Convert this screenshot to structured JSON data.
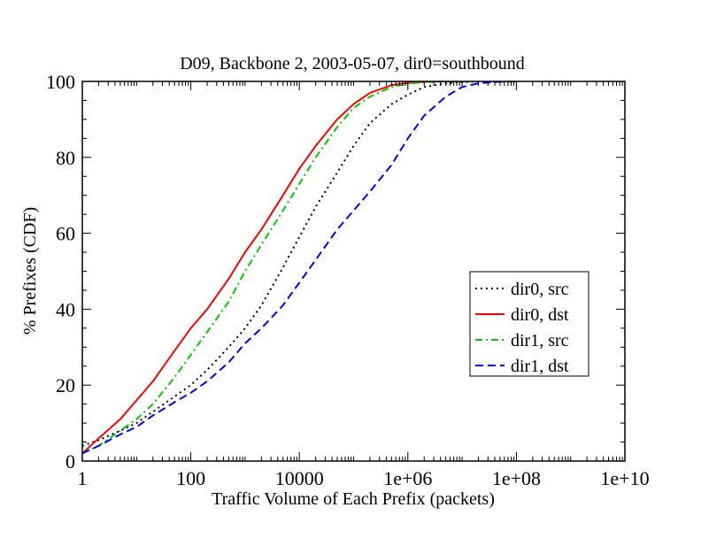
{
  "chart_data": {
    "type": "line",
    "title": "D09, Backbone 2, 2003-05-07, dir0=southbound",
    "xlabel": "Traffic Volume of Each Prefix (packets)",
    "ylabel": "% Prefixes (CDF)",
    "x_scale": "log",
    "xlim": [
      1,
      10000000000
    ],
    "ylim": [
      0,
      100
    ],
    "x_ticks": [
      1,
      100,
      10000,
      1000000,
      100000000,
      10000000000
    ],
    "x_tick_labels": [
      "1",
      "100",
      "10000",
      "1e+06",
      "1e+08",
      "1e+10"
    ],
    "y_ticks": [
      0,
      20,
      40,
      60,
      80,
      100
    ],
    "y_tick_labels": [
      "0",
      "20",
      "40",
      "60",
      "80",
      "100"
    ],
    "grid": false,
    "legend_position": "right",
    "series": [
      {
        "name": "dir0, src",
        "color": "#000000",
        "dash": "dotted",
        "x": [
          1,
          2,
          5,
          10,
          20,
          50,
          100,
          200,
          500,
          1000,
          2000,
          5000,
          10000,
          20000,
          50000,
          100000,
          200000,
          500000,
          1000000,
          2000000,
          5000000,
          10000000,
          20000000,
          50000000
        ],
        "y": [
          4,
          5.5,
          8,
          10,
          13,
          17,
          20,
          24,
          30,
          35,
          41,
          51,
          59,
          67,
          76,
          83,
          89,
          94,
          96.5,
          98.5,
          99.5,
          99.8,
          100,
          100
        ]
      },
      {
        "name": "dir0, dst",
        "color": "#ff0000",
        "dash": "solid",
        "x": [
          1,
          2,
          5,
          10,
          20,
          50,
          100,
          200,
          500,
          1000,
          2000,
          5000,
          10000,
          20000,
          50000,
          100000,
          200000,
          500000,
          1000000,
          2000000,
          5000000,
          10000000
        ],
        "y": [
          2,
          6,
          11,
          16,
          21,
          29,
          35,
          40,
          48,
          55,
          61,
          70,
          77,
          83,
          90,
          94,
          97,
          99,
          99.6,
          99.9,
          100,
          100
        ]
      },
      {
        "name": "dir1, src",
        "color": "#00cc00",
        "dash": "dashdot",
        "x": [
          1,
          2,
          5,
          10,
          20,
          50,
          100,
          200,
          500,
          1000,
          2000,
          5000,
          10000,
          20000,
          50000,
          100000,
          200000,
          500000,
          1000000,
          2000000,
          5000000,
          10000000,
          20000000
        ],
        "y": [
          2,
          4,
          8,
          11,
          15,
          22,
          28,
          34,
          42,
          50,
          57,
          66,
          73,
          80,
          88,
          93,
          96,
          98.5,
          99.4,
          99.8,
          100,
          100,
          100
        ]
      },
      {
        "name": "dir1, dst",
        "color": "#0000ff",
        "dash": "dashed",
        "x": [
          1,
          2,
          5,
          10,
          20,
          50,
          100,
          200,
          500,
          1000,
          2000,
          5000,
          10000,
          20000,
          50000,
          100000,
          200000,
          500000,
          1000000,
          2000000,
          5000000,
          10000000,
          20000000,
          50000000,
          100000000
        ],
        "y": [
          2,
          4,
          7,
          9,
          12,
          15.5,
          18,
          21,
          26,
          31,
          35,
          41,
          47,
          53,
          61,
          66,
          71,
          78,
          85,
          91,
          96,
          98.5,
          99.5,
          99.9,
          100
        ]
      }
    ]
  }
}
